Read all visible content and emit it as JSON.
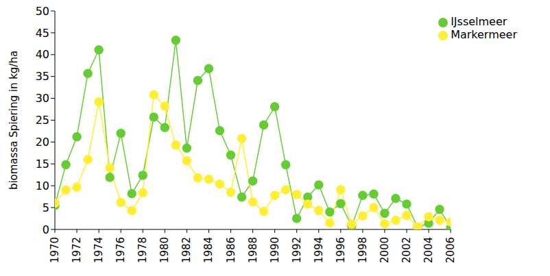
{
  "chart_data": {
    "type": "line",
    "y_label": "biomassa Spiering in kg/ha",
    "x": [
      1970,
      1971,
      1972,
      1973,
      1974,
      1975,
      1976,
      1977,
      1978,
      1979,
      1980,
      1981,
      1982,
      1983,
      1984,
      1985,
      1986,
      1987,
      1988,
      1989,
      1990,
      1991,
      1992,
      1993,
      1994,
      1995,
      1996,
      1997,
      1998,
      1999,
      2000,
      2001,
      2002,
      2003,
      2004,
      2005,
      2006
    ],
    "series": [
      {
        "name": "IJsselmeer",
        "color": "#66cc33",
        "marker": "circle",
        "values": [
          5.5,
          14.8,
          21.2,
          35.7,
          41.1,
          11.9,
          22,
          8.2,
          12.4,
          25.7,
          23.3,
          43.3,
          18.6,
          34.1,
          36.8,
          22.6,
          17,
          7.4,
          11.1,
          23.9,
          28.1,
          14.8,
          2.5,
          7.4,
          10.2,
          4,
          5.9,
          0.8,
          7.8,
          8.1,
          3.7,
          7.1,
          5.8,
          0.5,
          1.4,
          4.6,
          0.4
        ]
      },
      {
        "name": "Markermeer",
        "color": "#ffee33",
        "marker": "circle",
        "values": [
          6,
          9,
          9.7,
          16,
          29.2,
          14.1,
          6.2,
          4.3,
          8.4,
          30.8,
          28.2,
          19.3,
          15.7,
          11.8,
          11.5,
          10.4,
          8.5,
          20.8,
          6.3,
          4.1,
          7.8,
          9.1,
          8,
          5.8,
          4.3,
          1.5,
          9.1,
          1.2,
          3.1,
          5,
          1.3,
          2.1,
          3.2,
          0.6,
          2.9,
          2.1,
          1.7
        ]
      }
    ],
    "xlim": [
      1970,
      2006
    ],
    "xticks": [
      1970,
      1972,
      1974,
      1976,
      1978,
      1980,
      1982,
      1984,
      1986,
      1988,
      1990,
      1992,
      1994,
      1996,
      1998,
      2000,
      2002,
      2004,
      2006
    ],
    "ylim": [
      0,
      50
    ],
    "yticks": [
      0,
      5,
      10,
      15,
      20,
      25,
      30,
      35,
      40,
      45,
      50
    ],
    "grid": false,
    "legend": "top-right"
  }
}
